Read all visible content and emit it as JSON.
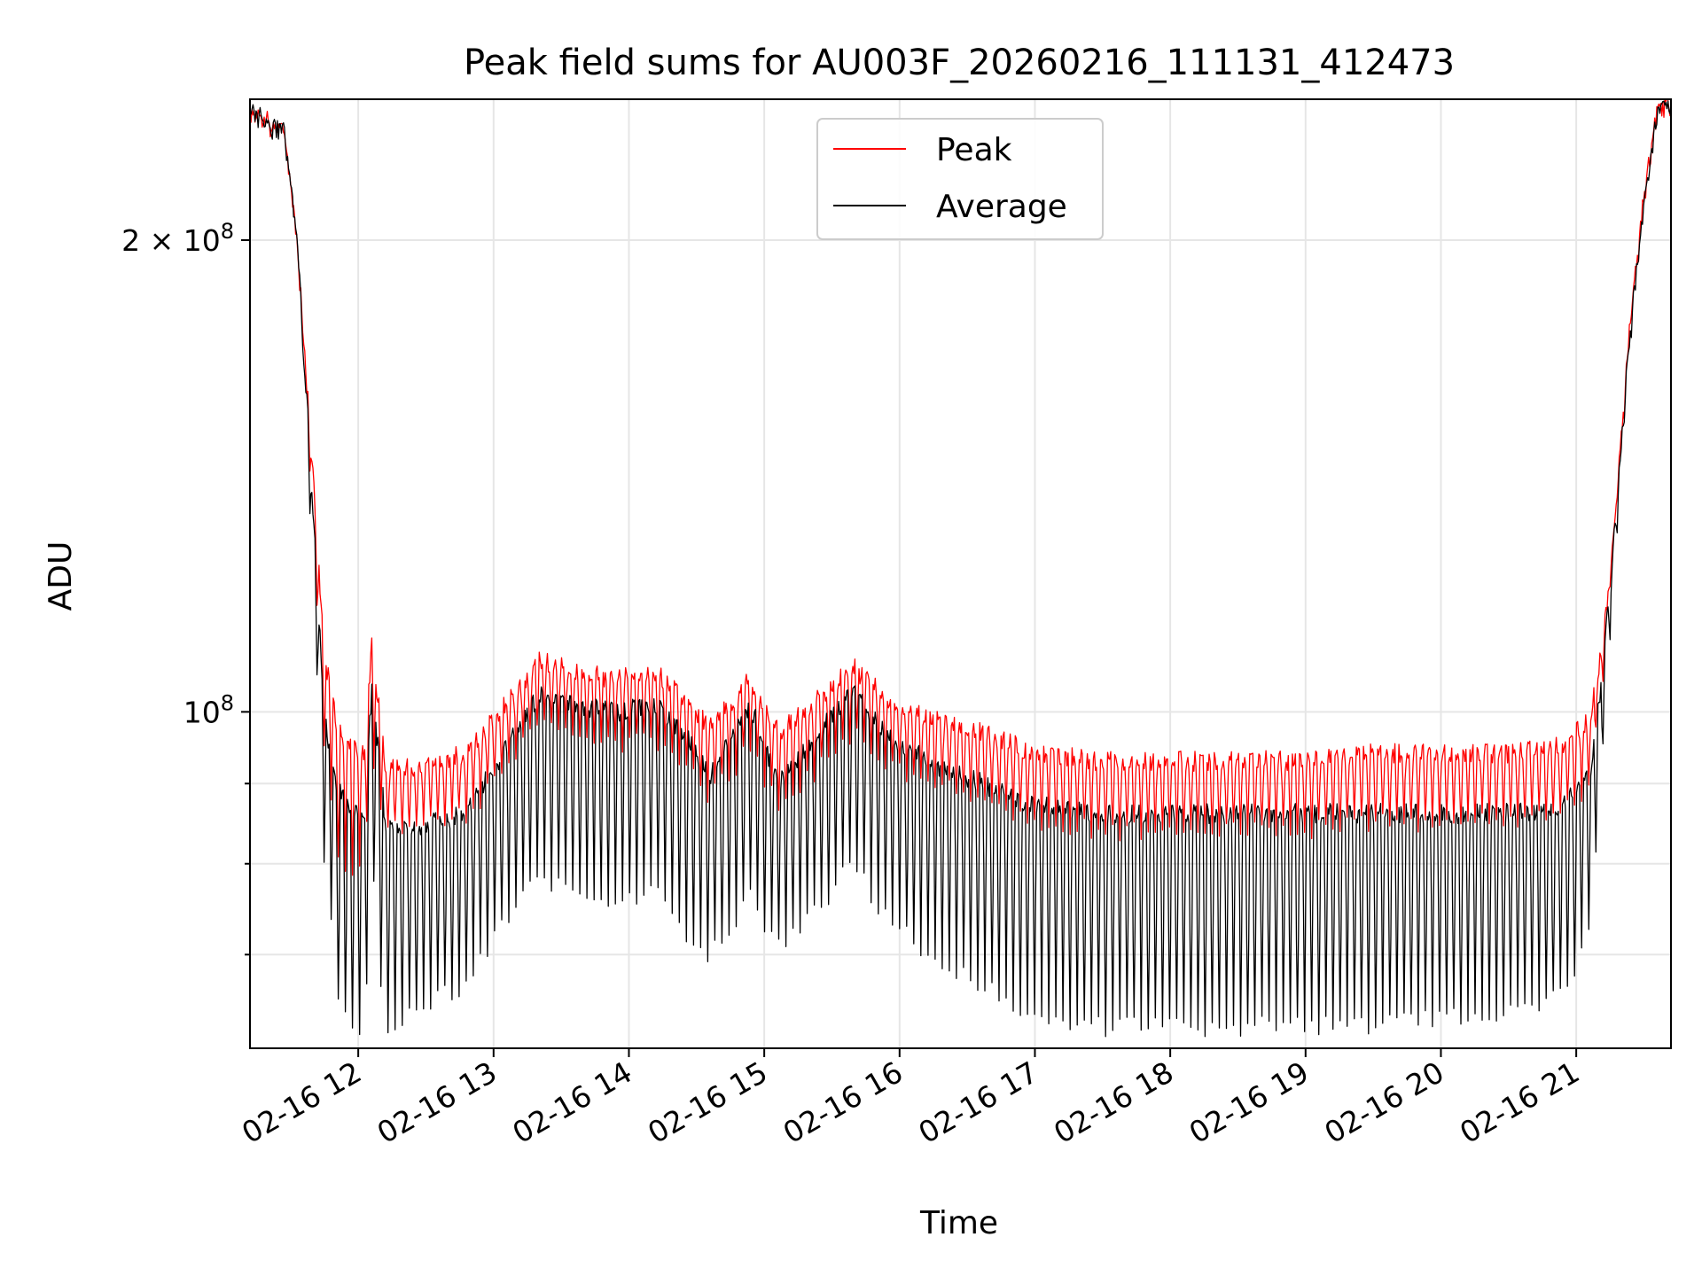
{
  "chart_data": {
    "type": "line",
    "title": "Peak field sums for AU003F_20260216_111131_412473",
    "xlabel": "Time",
    "ylabel": "ADU",
    "yscale": "log",
    "grid": true,
    "legend_position": "top-center",
    "xlim_hours": [
      11.2,
      21.7
    ],
    "ylim": [
      61000000,
      246000000
    ],
    "x_ticks": [
      {
        "hour": 12,
        "label": "02-16 12"
      },
      {
        "hour": 13,
        "label": "02-16 13"
      },
      {
        "hour": 14,
        "label": "02-16 14"
      },
      {
        "hour": 15,
        "label": "02-16 15"
      },
      {
        "hour": 16,
        "label": "02-16 16"
      },
      {
        "hour": 17,
        "label": "02-16 17"
      },
      {
        "hour": 18,
        "label": "02-16 18"
      },
      {
        "hour": 19,
        "label": "02-16 19"
      },
      {
        "hour": 20,
        "label": "02-16 20"
      },
      {
        "hour": 21,
        "label": "02-16 21"
      }
    ],
    "y_major_ticks": [
      {
        "value": 100000000,
        "base": "10",
        "exp": "8",
        "mant": ""
      },
      {
        "value": 200000000,
        "base": "10",
        "exp": "8",
        "mant": "2 × "
      }
    ],
    "y_minor_ticks": [
      70000000,
      80000000,
      90000000
    ],
    "series": [
      {
        "name": "Peak",
        "color": "#ff0000",
        "envelope": {
          "hours": [
            11.2,
            11.35,
            11.45,
            11.55,
            11.65,
            11.75,
            11.85,
            11.95,
            12.05,
            12.1,
            12.2,
            12.4,
            12.6,
            12.8,
            13.0,
            13.2,
            13.35,
            13.6,
            13.9,
            14.2,
            14.4,
            14.6,
            14.9,
            15.1,
            15.4,
            15.65,
            15.9,
            16.2,
            16.6,
            17.0,
            17.5,
            18.0,
            18.5,
            19.0,
            19.5,
            20.0,
            20.5,
            20.9,
            21.1,
            21.2,
            21.3,
            21.4,
            21.5,
            21.6,
            21.7
          ],
          "high": [
            243000000,
            238000000,
            237000000,
            200000000,
            150000000,
            110000000,
            98000000,
            96000000,
            95000000,
            112000000,
            93000000,
            93000000,
            94000000,
            95000000,
            100000000,
            105000000,
            109000000,
            107000000,
            106000000,
            107000000,
            103000000,
            99000000,
            106000000,
            98000000,
            103000000,
            108000000,
            103000000,
            100000000,
            98000000,
            95000000,
            94000000,
            94000000,
            94000000,
            94000000,
            95000000,
            95000000,
            95000000,
            96000000,
            100000000,
            112000000,
            140000000,
            180000000,
            215000000,
            245000000,
            246000000
          ],
          "low": [
            243000000,
            238000000,
            237000000,
            200000000,
            140000000,
            95000000,
            81000000,
            79000000,
            82000000,
            95000000,
            84000000,
            84000000,
            85000000,
            86000000,
            90000000,
            95000000,
            98000000,
            96000000,
            95000000,
            96000000,
            93000000,
            88000000,
            95000000,
            87000000,
            92000000,
            97000000,
            93000000,
            90000000,
            88000000,
            85000000,
            84000000,
            84000000,
            84000000,
            84000000,
            85000000,
            85000000,
            85000000,
            86000000,
            90000000,
            105000000,
            135000000,
            175000000,
            212000000,
            243000000,
            246000000
          ]
        }
      },
      {
        "name": "Average",
        "color": "#000000",
        "envelope": {
          "hours": [
            11.2,
            11.35,
            11.45,
            11.55,
            11.65,
            11.75,
            11.85,
            11.95,
            12.05,
            12.1,
            12.2,
            12.4,
            12.6,
            12.8,
            13.0,
            13.2,
            13.35,
            13.6,
            13.9,
            14.2,
            14.4,
            14.6,
            14.9,
            15.1,
            15.4,
            15.65,
            15.9,
            16.2,
            16.6,
            17.0,
            17.5,
            18.0,
            18.5,
            19.0,
            19.5,
            20.0,
            20.5,
            20.9,
            21.1,
            21.2,
            21.3,
            21.4,
            21.5,
            21.6,
            21.7
          ],
          "high": [
            243000000,
            238000000,
            237000000,
            200000000,
            145000000,
            100000000,
            90000000,
            88000000,
            87000000,
            105000000,
            86000000,
            85000000,
            86000000,
            87000000,
            93000000,
            99000000,
            104000000,
            102000000,
            101000000,
            102000000,
            98000000,
            92000000,
            102000000,
            91000000,
            98000000,
            104000000,
            98000000,
            94000000,
            91000000,
            88000000,
            87000000,
            87000000,
            87000000,
            87000000,
            87000000,
            87000000,
            87000000,
            88000000,
            92000000,
            108000000,
            138000000,
            178000000,
            213000000,
            244000000,
            246000000
          ],
          "low": [
            243000000,
            238000000,
            237000000,
            200000000,
            130000000,
            80000000,
            66000000,
            63000000,
            62000000,
            80000000,
            62000000,
            64000000,
            66000000,
            67000000,
            72000000,
            76000000,
            78000000,
            77000000,
            76000000,
            77000000,
            72000000,
            70000000,
            76000000,
            71000000,
            75000000,
            80000000,
            74000000,
            70000000,
            67000000,
            64000000,
            63000000,
            63000000,
            63000000,
            63000000,
            63000000,
            64000000,
            64000000,
            66000000,
            72000000,
            95000000,
            130000000,
            172000000,
            210000000,
            242000000,
            246000000
          ]
        }
      }
    ]
  }
}
